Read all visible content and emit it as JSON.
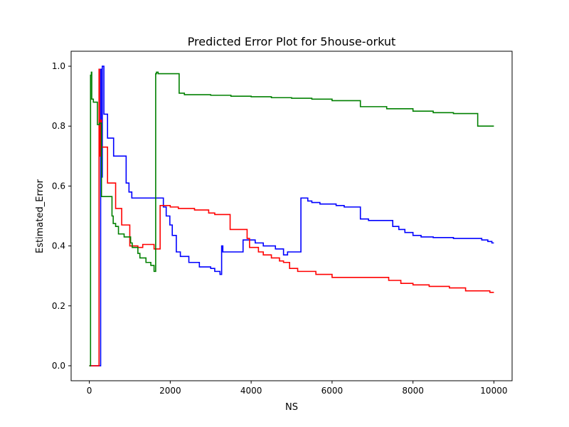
{
  "chart_data": {
    "type": "line",
    "title": "Predicted Error Plot for 5house-orkut",
    "xlabel": "NS",
    "ylabel": "Estimated_Error",
    "xlim": [
      -450,
      10450
    ],
    "ylim": [
      -0.05,
      1.05
    ],
    "xticks": [
      0,
      2000,
      4000,
      6000,
      8000,
      10000
    ],
    "yticks": [
      0.0,
      0.2,
      0.4,
      0.6,
      0.8,
      1.0
    ],
    "xtick_labels": [
      "0",
      "2000",
      "4000",
      "6000",
      "8000",
      "10000"
    ],
    "ytick_labels": [
      "0.0",
      "0.2",
      "0.4",
      "0.6",
      "0.8",
      "1.0"
    ],
    "grid": false,
    "legend": "none",
    "step": true,
    "series": [
      {
        "color": "#0000ff",
        "points": [
          [
            0,
            0
          ],
          [
            270,
            0
          ],
          [
            280,
            0.99
          ],
          [
            300,
            0.99
          ],
          [
            310,
            0.63
          ],
          [
            320,
            1.0
          ],
          [
            360,
            0.84
          ],
          [
            450,
            0.76
          ],
          [
            600,
            0.7
          ],
          [
            910,
            0.61
          ],
          [
            980,
            0.58
          ],
          [
            1050,
            0.56
          ],
          [
            1830,
            0.53
          ],
          [
            1900,
            0.5
          ],
          [
            1990,
            0.47
          ],
          [
            2050,
            0.435
          ],
          [
            2150,
            0.38
          ],
          [
            2250,
            0.365
          ],
          [
            2460,
            0.345
          ],
          [
            2720,
            0.33
          ],
          [
            3000,
            0.325
          ],
          [
            3100,
            0.315
          ],
          [
            3230,
            0.305
          ],
          [
            3270,
            0.4
          ],
          [
            3300,
            0.38
          ],
          [
            3700,
            0.38
          ],
          [
            3800,
            0.42
          ],
          [
            3850,
            0.42
          ],
          [
            4100,
            0.41
          ],
          [
            4300,
            0.4
          ],
          [
            4600,
            0.39
          ],
          [
            4800,
            0.37
          ],
          [
            4900,
            0.38
          ],
          [
            5200,
            0.38
          ],
          [
            5230,
            0.56
          ],
          [
            5400,
            0.55
          ],
          [
            5500,
            0.545
          ],
          [
            5700,
            0.54
          ],
          [
            6100,
            0.535
          ],
          [
            6300,
            0.53
          ],
          [
            6700,
            0.49
          ],
          [
            6900,
            0.485
          ],
          [
            7500,
            0.465
          ],
          [
            7650,
            0.455
          ],
          [
            7800,
            0.445
          ],
          [
            8000,
            0.435
          ],
          [
            8200,
            0.43
          ],
          [
            8500,
            0.428
          ],
          [
            9000,
            0.425
          ],
          [
            9700,
            0.42
          ],
          [
            9850,
            0.415
          ],
          [
            9950,
            0.41
          ],
          [
            10000,
            0.41
          ]
        ]
      },
      {
        "color": "#ff0000",
        "points": [
          [
            0,
            0
          ],
          [
            230,
            0
          ],
          [
            240,
            0.99
          ],
          [
            250,
            0.7
          ],
          [
            270,
            0.82
          ],
          [
            300,
            0.73
          ],
          [
            450,
            0.61
          ],
          [
            650,
            0.525
          ],
          [
            800,
            0.47
          ],
          [
            1000,
            0.4
          ],
          [
            1200,
            0.395
          ],
          [
            1320,
            0.405
          ],
          [
            1600,
            0.39
          ],
          [
            1750,
            0.535
          ],
          [
            2000,
            0.53
          ],
          [
            2200,
            0.525
          ],
          [
            2600,
            0.52
          ],
          [
            2950,
            0.51
          ],
          [
            3100,
            0.505
          ],
          [
            3480,
            0.455
          ],
          [
            3900,
            0.425
          ],
          [
            3960,
            0.395
          ],
          [
            4180,
            0.38
          ],
          [
            4300,
            0.37
          ],
          [
            4500,
            0.36
          ],
          [
            4700,
            0.35
          ],
          [
            4800,
            0.345
          ],
          [
            4950,
            0.325
          ],
          [
            5150,
            0.315
          ],
          [
            5600,
            0.305
          ],
          [
            6000,
            0.295
          ],
          [
            6900,
            0.295
          ],
          [
            7400,
            0.285
          ],
          [
            7700,
            0.275
          ],
          [
            8000,
            0.27
          ],
          [
            8400,
            0.265
          ],
          [
            8900,
            0.26
          ],
          [
            9300,
            0.25
          ],
          [
            9900,
            0.245
          ],
          [
            10000,
            0.245
          ]
        ]
      },
      {
        "color": "#008000",
        "points": [
          [
            0,
            0
          ],
          [
            20,
            0
          ],
          [
            30,
            0.97
          ],
          [
            50,
            0.98
          ],
          [
            60,
            0.89
          ],
          [
            100,
            0.88
          ],
          [
            200,
            0.805
          ],
          [
            250,
            0.81
          ],
          [
            300,
            0.565
          ],
          [
            560,
            0.5
          ],
          [
            590,
            0.475
          ],
          [
            650,
            0.465
          ],
          [
            720,
            0.44
          ],
          [
            860,
            0.43
          ],
          [
            1020,
            0.41
          ],
          [
            1060,
            0.395
          ],
          [
            1200,
            0.375
          ],
          [
            1250,
            0.36
          ],
          [
            1400,
            0.345
          ],
          [
            1520,
            0.335
          ],
          [
            1600,
            0.315
          ],
          [
            1640,
            0.975
          ],
          [
            1660,
            0.98
          ],
          [
            1700,
            0.975
          ],
          [
            2220,
            0.91
          ],
          [
            2350,
            0.905
          ],
          [
            2500,
            0.905
          ],
          [
            3000,
            0.903
          ],
          [
            3500,
            0.9
          ],
          [
            4000,
            0.898
          ],
          [
            4500,
            0.895
          ],
          [
            5000,
            0.893
          ],
          [
            5500,
            0.89
          ],
          [
            6000,
            0.885
          ],
          [
            6700,
            0.865
          ],
          [
            7350,
            0.858
          ],
          [
            8000,
            0.85
          ],
          [
            8500,
            0.845
          ],
          [
            9000,
            0.842
          ],
          [
            9600,
            0.8
          ],
          [
            10000,
            0.8
          ]
        ]
      }
    ]
  }
}
